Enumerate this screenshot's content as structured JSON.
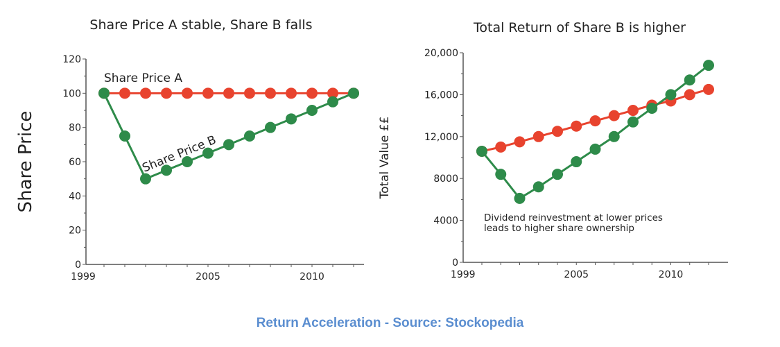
{
  "chart_data": [
    {
      "type": "line",
      "title": "Share Price A stable, Share B falls",
      "xlabel": "",
      "ylabel": "Share Price",
      "xlim": [
        1999,
        2012
      ],
      "ylim": [
        0,
        120
      ],
      "xticks": [
        "1999",
        "2005",
        "2010"
      ],
      "yticks": [
        "0",
        "20",
        "40",
        "60",
        "80",
        "100",
        "120"
      ],
      "grid": false,
      "x": [
        2000,
        2001,
        2002,
        2003,
        2004,
        2005,
        2006,
        2007,
        2008,
        2009,
        2010,
        2011,
        2012
      ],
      "series": [
        {
          "name": "Share Price A",
          "color": "#e8432e",
          "values": [
            100,
            100,
            100,
            100,
            100,
            100,
            100,
            100,
            100,
            100,
            100,
            100,
            100
          ]
        },
        {
          "name": "Share Price B",
          "color": "#2e8b4a",
          "values": [
            100,
            75,
            50,
            55,
            60,
            65,
            70,
            75,
            80,
            85,
            90,
            95,
            100
          ]
        }
      ]
    },
    {
      "type": "line",
      "title": "Total Return of Share B is higher",
      "xlabel": "",
      "ylabel": "Total Value ££",
      "xlim": [
        1999,
        2012
      ],
      "ylim": [
        0,
        20000
      ],
      "xticks": [
        "1999",
        "2005",
        "2010"
      ],
      "yticks": [
        "0",
        "4000",
        "8000",
        "12,000",
        "16,000",
        "20,000"
      ],
      "grid": false,
      "annotation": [
        "Dividend reinvestment at lower prices",
        "leads to higher share ownership"
      ],
      "x": [
        2000,
        2001,
        2002,
        2003,
        2004,
        2005,
        2006,
        2007,
        2008,
        2009,
        2010,
        2011,
        2012
      ],
      "series": [
        {
          "color": "#e8432e",
          "values": [
            10600,
            11000,
            11500,
            12000,
            12500,
            13000,
            13500,
            14000,
            14500,
            15000,
            15400,
            16000,
            16500
          ]
        },
        {
          "color": "#2e8b4a",
          "values": [
            10600,
            8400,
            6100,
            7200,
            8400,
            9600,
            10800,
            12000,
            13400,
            14700,
            16000,
            17400,
            18800
          ]
        }
      ]
    }
  ],
  "caption": "Return Acceleration - Source: Stockopedia"
}
